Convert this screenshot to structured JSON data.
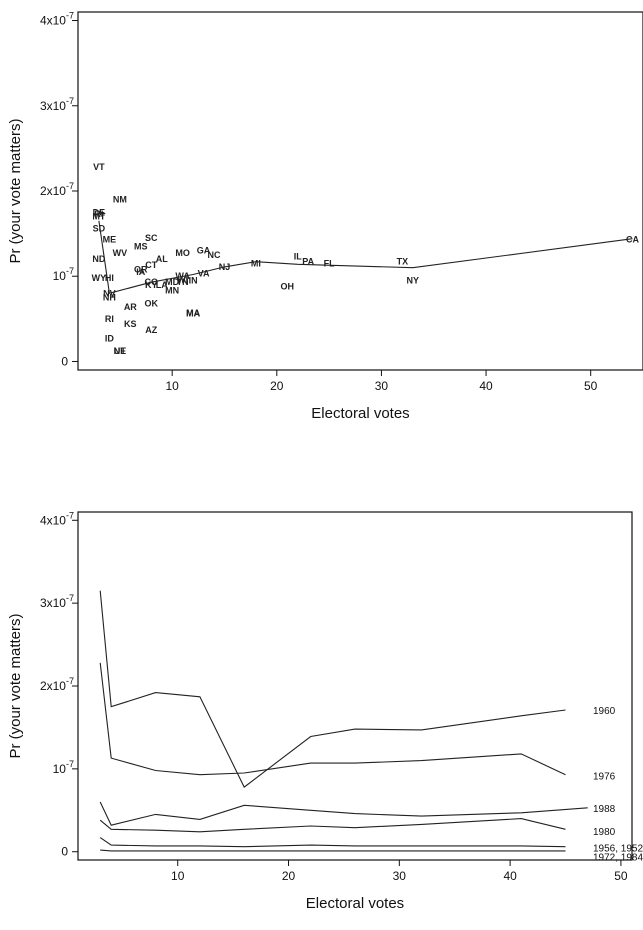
{
  "chart_data": [
    {
      "type": "scatter",
      "xlabel": "Electoral votes",
      "ylabel": "Pr (your vote matters)",
      "xlim": [
        1,
        55
      ],
      "ylim": [
        -0.1,
        4.1
      ],
      "xticks": [
        10,
        20,
        30,
        40,
        50
      ],
      "yticks": [
        {
          "v": 0,
          "base": "0",
          "exp": ""
        },
        {
          "v": 1,
          "base": "10",
          "exp": "-7"
        },
        {
          "v": 2,
          "base": "2x10",
          "exp": "-7"
        },
        {
          "v": 3,
          "base": "3x10",
          "exp": "-7"
        },
        {
          "v": 4,
          "base": "4x10",
          "exp": "-7"
        }
      ],
      "y_scale_note": "values in units of 10^-7",
      "points": [
        {
          "label": "VT",
          "x": 3,
          "y": 2.28
        },
        {
          "label": "NM",
          "x": 5,
          "y": 1.9
        },
        {
          "label": "DE",
          "x": 3,
          "y": 1.75
        },
        {
          "label": "RI",
          "x": 3,
          "y": 1.73
        },
        {
          "label": "MT",
          "x": 3,
          "y": 1.7
        },
        {
          "label": "SD",
          "x": 3,
          "y": 1.56
        },
        {
          "label": "ME",
          "x": 4,
          "y": 1.43
        },
        {
          "label": "ND",
          "x": 3,
          "y": 1.2
        },
        {
          "label": "WV",
          "x": 5,
          "y": 1.27
        },
        {
          "label": "MS",
          "x": 7,
          "y": 1.35
        },
        {
          "label": "SC",
          "x": 8,
          "y": 1.45
        },
        {
          "label": "AL",
          "x": 9,
          "y": 1.2
        },
        {
          "label": "CT",
          "x": 8,
          "y": 1.13
        },
        {
          "label": "OR",
          "x": 7,
          "y": 1.08
        },
        {
          "label": "IA",
          "x": 7,
          "y": 1.05
        },
        {
          "label": "CO",
          "x": 8,
          "y": 0.93
        },
        {
          "label": "KY",
          "x": 8,
          "y": 0.9
        },
        {
          "label": "LA",
          "x": 9,
          "y": 0.9
        },
        {
          "label": "MD",
          "x": 10,
          "y": 0.93
        },
        {
          "label": "TN",
          "x": 11,
          "y": 0.93
        },
        {
          "label": "MO",
          "x": 11,
          "y": 1.27
        },
        {
          "label": "GA",
          "x": 13,
          "y": 1.3
        },
        {
          "label": "NC",
          "x": 14,
          "y": 1.25
        },
        {
          "label": "WA",
          "x": 11,
          "y": 1.0
        },
        {
          "label": "VA",
          "x": 13,
          "y": 1.03
        },
        {
          "label": "NJ",
          "x": 15,
          "y": 1.11
        },
        {
          "label": "WI",
          "x": 11,
          "y": 0.95
        },
        {
          "label": "IN",
          "x": 12,
          "y": 0.95
        },
        {
          "label": "MN",
          "x": 10,
          "y": 0.83
        },
        {
          "label": "MI",
          "x": 18,
          "y": 1.15
        },
        {
          "label": "IL",
          "x": 22,
          "y": 1.23
        },
        {
          "label": "PA",
          "x": 23,
          "y": 1.17
        },
        {
          "label": "FL",
          "x": 25,
          "y": 1.15
        },
        {
          "label": "OH",
          "x": 21,
          "y": 0.88
        },
        {
          "label": "TX",
          "x": 32,
          "y": 1.17
        },
        {
          "label": "NY",
          "x": 33,
          "y": 0.95
        },
        {
          "label": "CA",
          "x": 54,
          "y": 1.43
        },
        {
          "label": "WY",
          "x": 3,
          "y": 0.98
        },
        {
          "label": "HI",
          "x": 4,
          "y": 0.98
        },
        {
          "label": "NV",
          "x": 4,
          "y": 0.8
        },
        {
          "label": "NH",
          "x": 4,
          "y": 0.75
        },
        {
          "label": "AR",
          "x": 6,
          "y": 0.64
        },
        {
          "label": "OK",
          "x": 8,
          "y": 0.68
        },
        {
          "label": "RI",
          "x": 4,
          "y": 0.5
        },
        {
          "label": "KS",
          "x": 6,
          "y": 0.44
        },
        {
          "label": "AZ",
          "x": 8,
          "y": 0.37
        },
        {
          "label": "MA",
          "x": 12,
          "y": 0.57
        },
        {
          "label": "MA",
          "x": 12,
          "y": 0.56
        },
        {
          "label": "ID",
          "x": 4,
          "y": 0.27
        },
        {
          "label": "NE",
          "x": 5,
          "y": 0.12
        },
        {
          "label": "UT",
          "x": 5,
          "y": 0.12
        }
      ],
      "smooth_line": {
        "x": [
          3,
          4,
          8,
          12,
          15,
          18,
          22,
          33,
          54
        ],
        "y": [
          1.65,
          0.8,
          0.93,
          1.02,
          1.11,
          1.17,
          1.14,
          1.1,
          1.44
        ]
      }
    },
    {
      "type": "line",
      "xlabel": "Electoral votes",
      "ylabel": "Pr (your vote matters)",
      "xlim": [
        1,
        51
      ],
      "ylim": [
        -0.1,
        4.1
      ],
      "xticks": [
        10,
        20,
        30,
        40,
        50
      ],
      "yticks": [
        {
          "v": 0,
          "base": "0",
          "exp": ""
        },
        {
          "v": 1,
          "base": "10",
          "exp": "-7"
        },
        {
          "v": 2,
          "base": "2x10",
          "exp": "-7"
        },
        {
          "v": 3,
          "base": "3x10",
          "exp": "-7"
        },
        {
          "v": 4,
          "base": "4x10",
          "exp": "-7"
        }
      ],
      "series": [
        {
          "name": "1960",
          "x": [
            3,
            4,
            8,
            12,
            16,
            22,
            26,
            32,
            41,
            45
          ],
          "y": [
            3.15,
            1.75,
            1.92,
            1.87,
            0.78,
            1.39,
            1.48,
            1.47,
            1.64,
            1.71
          ]
        },
        {
          "name": "1976",
          "x": [
            3,
            4,
            8,
            12,
            16,
            22,
            26,
            32,
            41,
            45
          ],
          "y": [
            2.28,
            1.13,
            0.98,
            0.93,
            0.95,
            1.07,
            1.07,
            1.1,
            1.18,
            0.93
          ]
        },
        {
          "name": "1988",
          "x": [
            3,
            4,
            8,
            12,
            16,
            22,
            26,
            32,
            41,
            47
          ],
          "y": [
            0.6,
            0.32,
            0.45,
            0.39,
            0.56,
            0.5,
            0.46,
            0.43,
            0.47,
            0.53
          ]
        },
        {
          "name": "1980",
          "x": [
            3,
            4,
            8,
            12,
            16,
            22,
            26,
            32,
            41,
            45
          ],
          "y": [
            0.38,
            0.27,
            0.26,
            0.24,
            0.27,
            0.31,
            0.29,
            0.33,
            0.4,
            0.27
          ]
        },
        {
          "name": "1956, 1952",
          "x": [
            3,
            4,
            8,
            12,
            16,
            22,
            26,
            32,
            41,
            45
          ],
          "y": [
            0.17,
            0.08,
            0.07,
            0.07,
            0.06,
            0.08,
            0.07,
            0.07,
            0.07,
            0.06
          ]
        },
        {
          "name": "1972, 1984",
          "x": [
            3,
            4,
            8,
            12,
            16,
            22,
            26,
            32,
            41,
            45
          ],
          "y": [
            0.02,
            0.01,
            0.01,
            0.01,
            0.01,
            0.01,
            0.01,
            0.01,
            0.01,
            0.01
          ]
        }
      ],
      "series_label_y": [
        1.71,
        0.92,
        0.53,
        0.25,
        0.05,
        -0.06
      ]
    }
  ]
}
